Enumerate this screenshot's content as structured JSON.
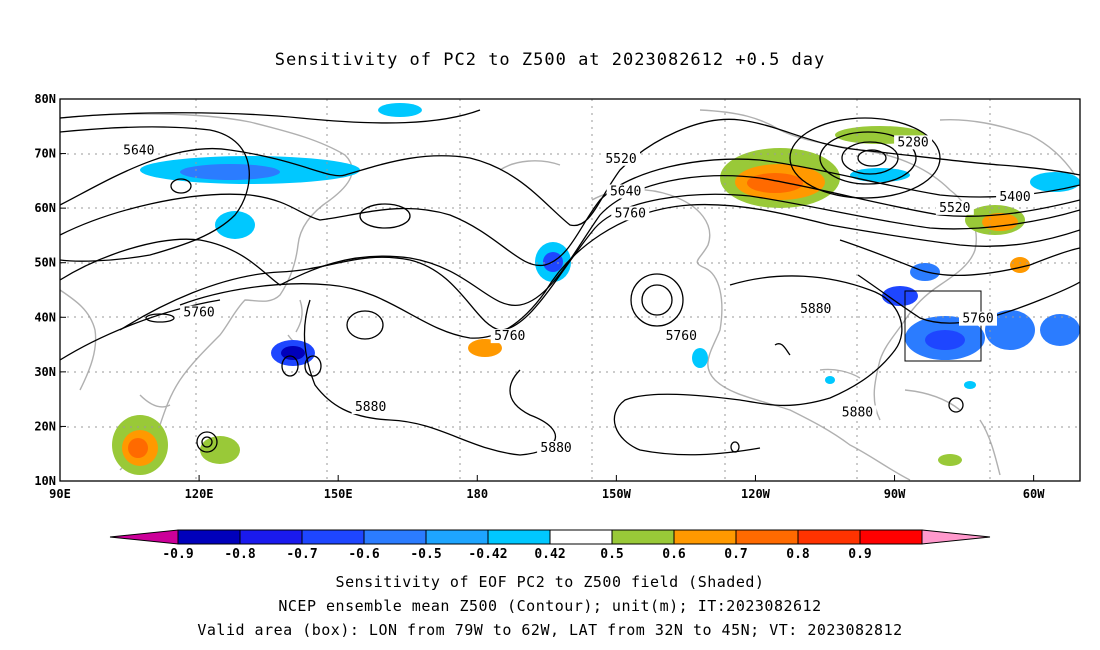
{
  "title": "Sensitivity of PC2 to Z500 at 2023082612 +0.5 day",
  "lon_ticks": [
    "90E",
    "120E",
    "150E",
    "180",
    "150W",
    "120W",
    "90W",
    "60W"
  ],
  "lat_ticks": [
    "80N",
    "70N",
    "60N",
    "50N",
    "40N",
    "30N",
    "20N",
    "10N"
  ],
  "contour_labels": [
    {
      "text": "5640",
      "lon": 107,
      "lat": 70
    },
    {
      "text": "5760",
      "lon": 120,
      "lat": 40.3
    },
    {
      "text": "5880",
      "lon": 157,
      "lat": 23
    },
    {
      "text": "5760",
      "lon": 187,
      "lat": 36
    },
    {
      "text": "5880",
      "lon": 197,
      "lat": 15.5
    },
    {
      "text": "5520",
      "lon": 211,
      "lat": 68.5
    },
    {
      "text": "5640",
      "lon": 212,
      "lat": 62.5
    },
    {
      "text": "5760",
      "lon": 213,
      "lat": 58.5
    },
    {
      "text": "5760",
      "lon": 224,
      "lat": 36
    },
    {
      "text": "5880",
      "lon": 253,
      "lat": 41
    },
    {
      "text": "5880",
      "lon": 262,
      "lat": 22
    },
    {
      "text": "5280",
      "lon": 274,
      "lat": 71.5
    },
    {
      "text": "5400",
      "lon": 296,
      "lat": 61.5
    },
    {
      "text": "5520",
      "lon": 283,
      "lat": 59.5
    },
    {
      "text": "5760",
      "lon": 288,
      "lat": 39.2
    }
  ],
  "colorbar": {
    "colors": [
      "#cc0099",
      "#0000bb",
      "#1a1aee",
      "#1e46ff",
      "#2b7cff",
      "#1ea5ff",
      "#00c8ff",
      "#ffffff",
      "#99c938",
      "#ff9900",
      "#ff6a00",
      "#ff3300",
      "#ff0000",
      "#ff99cc"
    ],
    "labels": [
      "-0.9",
      "-0.8",
      "-0.7",
      "-0.6",
      "-0.5",
      "-0.42",
      "0.42",
      "0.5",
      "0.6",
      "0.7",
      "0.8",
      "0.9"
    ]
  },
  "captions": [
    "Sensitivity of EOF PC2 to Z500 field (Shaded)",
    "NCEP ensemble mean Z500 (Contour); unit(m); IT:2023082612",
    "Valid area (box): LON from 79W to 62W, LAT from 32N to 45N; VT: 2023082812"
  ],
  "valid_box": {
    "lon_west": -79,
    "lon_east": -62,
    "lat_south": 32,
    "lat_north": 45
  }
}
